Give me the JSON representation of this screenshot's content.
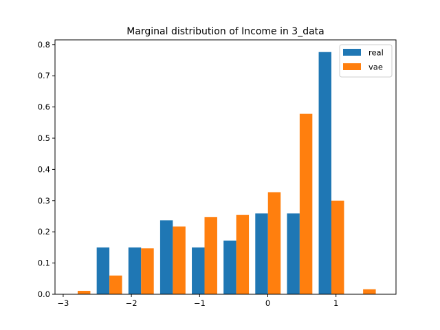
{
  "chart_data": {
    "type": "bar",
    "title": "Marginal distribution of Income in 3_data",
    "xlabel": "",
    "ylabel": "",
    "xlim": [
      -3.12,
      1.88
    ],
    "ylim": [
      0,
      0.815
    ],
    "x_ticks": [
      {
        "value": -3,
        "label": "−3"
      },
      {
        "value": -2,
        "label": "−2"
      },
      {
        "value": -1,
        "label": "−1"
      },
      {
        "value": 0,
        "label": "0"
      },
      {
        "value": 1,
        "label": "1"
      }
    ],
    "y_ticks": [
      {
        "value": 0.0,
        "label": "0.0"
      },
      {
        "value": 0.1,
        "label": "0.1"
      },
      {
        "value": 0.2,
        "label": "0.2"
      },
      {
        "value": 0.3,
        "label": "0.3"
      },
      {
        "value": 0.4,
        "label": "0.4"
      },
      {
        "value": 0.5,
        "label": "0.5"
      },
      {
        "value": 0.6,
        "label": "0.6"
      },
      {
        "value": 0.7,
        "label": "0.7"
      },
      {
        "value": 0.8,
        "label": "0.8"
      }
    ],
    "bin_edges": [
      -3.02,
      -2.555,
      -2.09,
      -1.625,
      -1.16,
      -0.695,
      -0.23,
      0.235,
      0.7,
      1.165,
      1.63
    ],
    "series": [
      {
        "name": "real",
        "color": "#1f77b4",
        "values": [
          0.0,
          0.15,
          0.15,
          0.237,
          0.15,
          0.172,
          0.259,
          0.259,
          0.776,
          0.0
        ]
      },
      {
        "name": "vae",
        "color": "#ff7f0e",
        "values": [
          0.011,
          0.06,
          0.147,
          0.217,
          0.247,
          0.254,
          0.327,
          0.578,
          0.3,
          0.016
        ]
      }
    ],
    "legend_position": "top-right",
    "grid": false
  }
}
